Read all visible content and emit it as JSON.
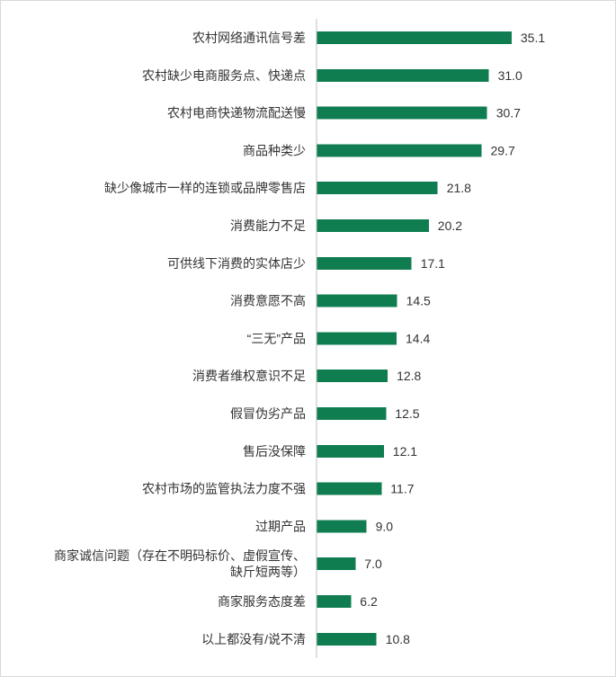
{
  "chart_data": {
    "type": "bar",
    "orientation": "horizontal",
    "title": "",
    "xlabel": "",
    "ylabel": "",
    "bar_color": "#0f7d50",
    "xlim": [
      0,
      40
    ],
    "grid": false,
    "legend": "none",
    "categories": [
      "农村网络通讯信号差",
      "农村缺少电商服务点、快递点",
      "农村电商快递物流配送慢",
      "商品种类少",
      "缺少像城市一样的连锁或品牌零售店",
      "消费能力不足",
      "可供线下消费的实体店少",
      "消费意愿不高",
      "“三无”产品",
      "消费者维权意识不足",
      "假冒伪劣产品",
      "售后没保障",
      "农村市场的监管执法力度不强",
      "过期产品",
      "商家诚信问题（存在不明码标价、虚假宣传、缺斤短两等）",
      "商家服务态度差",
      "以上都没有/说不清"
    ],
    "category_lines": [
      [
        "农村网络通讯信号差"
      ],
      [
        "农村缺少电商服务点、快递点"
      ],
      [
        "农村电商快递物流配送慢"
      ],
      [
        "商品种类少"
      ],
      [
        "缺少像城市一样的连锁或品牌零售店"
      ],
      [
        "消费能力不足"
      ],
      [
        "可供线下消费的实体店少"
      ],
      [
        "消费意愿不高"
      ],
      [
        "“三无”产品"
      ],
      [
        "消费者维权意识不足"
      ],
      [
        "假冒伪劣产品"
      ],
      [
        "售后没保障"
      ],
      [
        "农村市场的监管执法力度不强"
      ],
      [
        "过期产品"
      ],
      [
        "商家诚信问题（存在不明码标价、虚假宣传、",
        "缺斤短两等）"
      ],
      [
        "商家服务态度差"
      ],
      [
        "以上都没有/说不清"
      ]
    ],
    "values": [
      35.1,
      31.0,
      30.7,
      29.7,
      21.8,
      20.2,
      17.1,
      14.5,
      14.4,
      12.8,
      12.5,
      12.1,
      11.7,
      9.0,
      7.0,
      6.2,
      10.8
    ],
    "value_labels": [
      "35.1",
      "31.0",
      "30.7",
      "29.7",
      "21.8",
      "20.2",
      "17.1",
      "14.5",
      "14.4",
      "12.8",
      "12.5",
      "12.1",
      "11.7",
      "9.0",
      "7.0",
      "6.2",
      "10.8"
    ]
  }
}
